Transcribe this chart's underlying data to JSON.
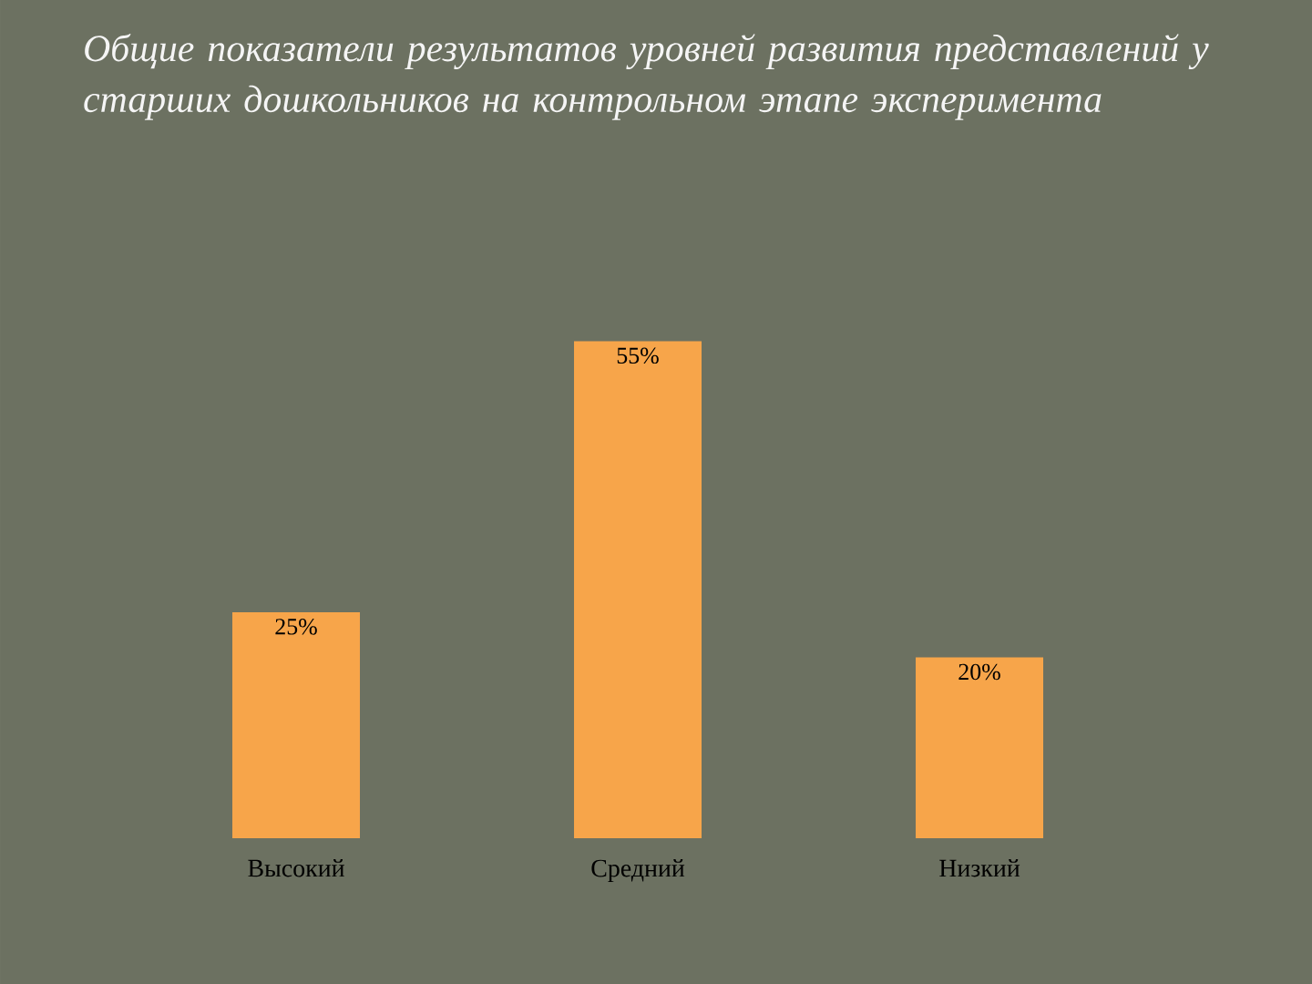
{
  "chart_data": {
    "type": "bar",
    "title": "Общие показатели результатов уровней развития представлений у старших дошкольников на контрольном этапе эксперимента",
    "categories": [
      "Высокий",
      "Средний",
      "Низкий"
    ],
    "values": [
      25,
      55,
      20
    ],
    "value_labels": [
      "25%",
      "55%",
      "20%"
    ],
    "color": "#f7a54a"
  }
}
